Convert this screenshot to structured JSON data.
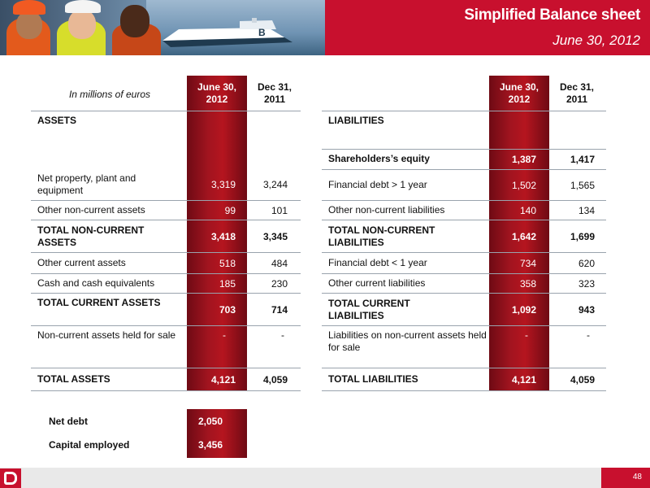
{
  "header": {
    "title": "Simplified Balance sheet",
    "date": "June 30, 2012"
  },
  "assets": {
    "units": "In millions of euros",
    "col1": "June 30, 2012",
    "col2": "Dec 31, 2011",
    "section": "ASSETS",
    "rows": [
      {
        "label": "Net property, plant and equipment",
        "v1": "3,319",
        "v2": "3,244"
      },
      {
        "label": "Other non-current assets",
        "v1": "99",
        "v2": "101"
      },
      {
        "label": "TOTAL NON-CURRENT ASSETS",
        "v1": "3,418",
        "v2": "3,345"
      },
      {
        "label": "Other current assets",
        "v1": "518",
        "v2": "484"
      },
      {
        "label": "Cash and cash equivalents",
        "v1": "185",
        "v2": "230"
      },
      {
        "label": "TOTAL CURRENT ASSETS",
        "v1": "703",
        "v2": "714"
      },
      {
        "label": "Non-current assets held for sale",
        "v1": "-",
        "v2": "-"
      },
      {
        "label": "TOTAL ASSETS",
        "v1": "4,121",
        "v2": "4,059"
      }
    ]
  },
  "liabilities": {
    "col1": "June 30, 2012",
    "col2": "Dec 31, 2011",
    "section": "LIABILITIES",
    "rows": [
      {
        "label": "Shareholders’s equity",
        "v1": "1,387",
        "v2": "1,417"
      },
      {
        "label": "Financial debt > 1 year",
        "v1": "1,502",
        "v2": "1,565"
      },
      {
        "label": "Other non-current liabilities",
        "v1": "140",
        "v2": "134"
      },
      {
        "label": "TOTAL NON-CURRENT LIABILITIES",
        "v1": "1,642",
        "v2": "1,699"
      },
      {
        "label": "Financial debt < 1 year",
        "v1": "734",
        "v2": "620"
      },
      {
        "label": "Other current liabilities",
        "v1": "358",
        "v2": "323"
      },
      {
        "label": "TOTAL CURRENT LIABILITIES",
        "v1": "1,092",
        "v2": "943"
      },
      {
        "label": "Liabilities on non-current assets held for sale",
        "v1": "-",
        "v2": "-"
      },
      {
        "label": "TOTAL LIABILITIES",
        "v1": "4,121",
        "v2": "4,059"
      }
    ]
  },
  "summary": {
    "net_debt_label": "Net debt",
    "net_debt_value": "2,050",
    "capital_employed_label": "Capital employed",
    "capital_employed_value": "3,456"
  },
  "footer": {
    "page_number": "48"
  },
  "colors": {
    "brand_red": "#c8102e",
    "dark_red": "#6e0a14"
  },
  "icons": {
    "logo": "bourbon-b-logo-icon"
  }
}
